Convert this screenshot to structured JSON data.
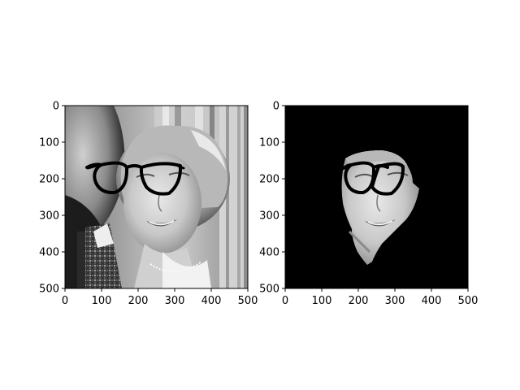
{
  "figure": {
    "background": "#ffffff",
    "panels": [
      {
        "name": "original-with-glasses",
        "content": "grayscale photograph of a smiling woman with wavy hair, man at left edge, window shutters behind, black eyeglasses drawn over her eyes",
        "x_ticks": [
          "0",
          "100",
          "200",
          "300",
          "400",
          "500"
        ],
        "y_ticks": [
          "0",
          "100",
          "200",
          "300",
          "400",
          "500"
        ],
        "x_range": [
          0,
          500
        ],
        "y_range": [
          0,
          500
        ]
      },
      {
        "name": "face-segmented-with-glasses",
        "content": "only the woman's face region kept, everything else black, with black eyeglasses drawn over her eyes",
        "x_ticks": [
          "0",
          "100",
          "200",
          "300",
          "400",
          "500"
        ],
        "y_ticks": [
          "0",
          "100",
          "200",
          "300",
          "400",
          "500"
        ],
        "x_range": [
          0,
          500
        ],
        "y_range": [
          0,
          500
        ]
      }
    ],
    "colors": {
      "glasses": "#000000",
      "mask_background": "#000000",
      "axis": "#000000"
    }
  }
}
